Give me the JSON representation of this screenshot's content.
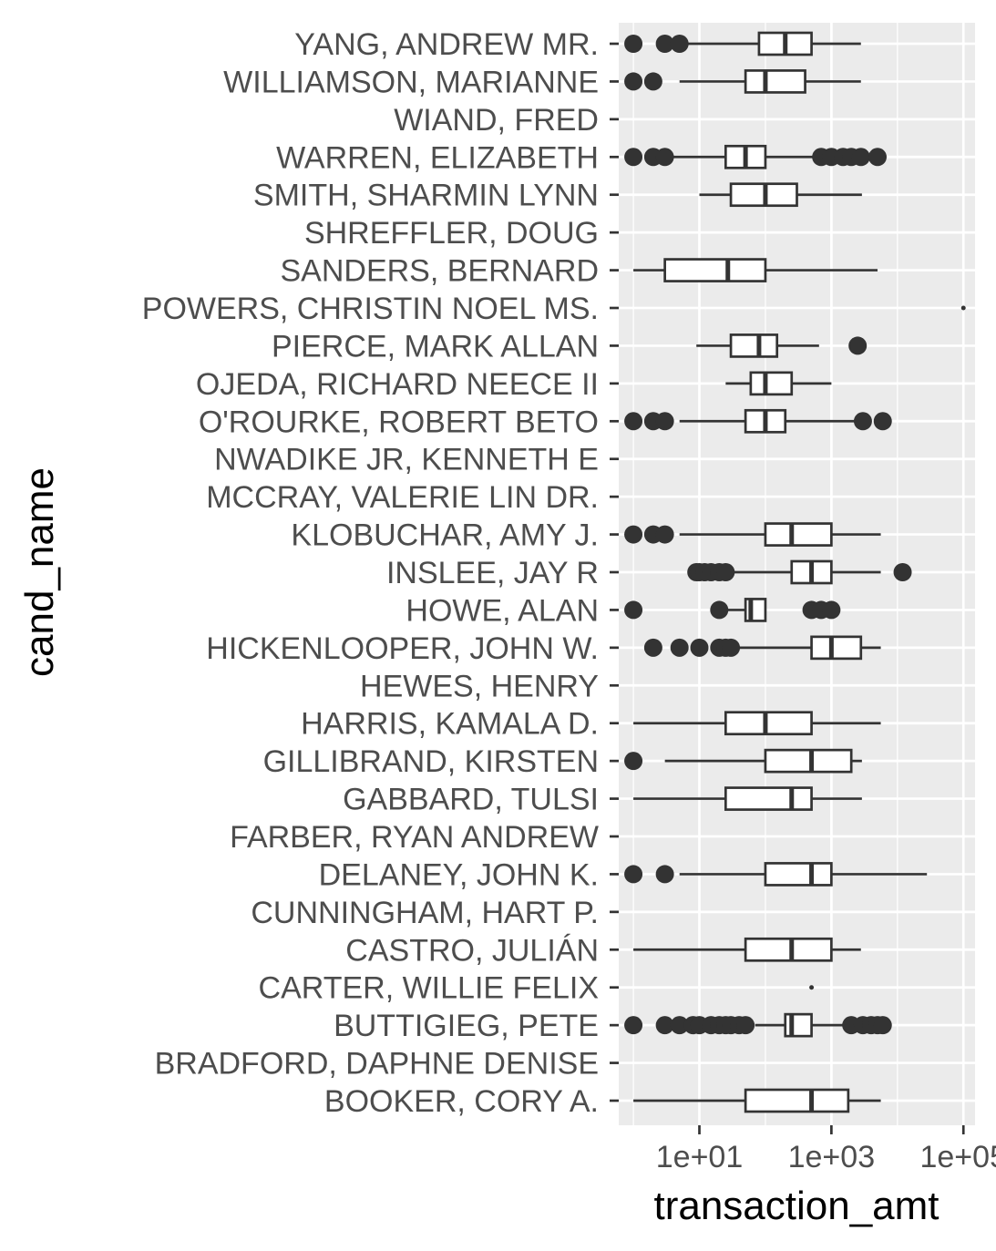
{
  "chart_data": {
    "type": "boxplot",
    "orientation": "horizontal",
    "xlabel": "transaction_amt",
    "ylabel": "cand_name",
    "x_scale": "log10",
    "xlim": [
      0.6,
      150000
    ],
    "x_ticks": [
      10,
      1000,
      100000
    ],
    "x_tick_labels": [
      "1e+01",
      "1e+03",
      "1e+05"
    ],
    "x_minor_ticks": [
      1,
      100,
      10000
    ],
    "grid": true,
    "legend": "none",
    "colors": {
      "panel": "#ebebeb",
      "grid": "#ffffff",
      "box_line": "#333333",
      "box_fill": "#ffffff",
      "outlier": "#333333"
    },
    "categories": [
      "YANG, ANDREW MR.",
      "WILLIAMSON, MARIANNE",
      "WIAND, FRED",
      "WARREN, ELIZABETH",
      "SMITH, SHARMIN LYNN",
      "SHREFFLER, DOUG",
      "SANDERS, BERNARD",
      "POWERS, CHRISTIN NOEL MS.",
      "PIERCE, MARK ALLAN",
      "OJEDA, RICHARD NEECE II",
      "O'ROURKE, ROBERT BETO",
      "NWADIKE JR, KENNETH E",
      "MCCRAY, VALERIE LIN DR.",
      "KLOBUCHAR, AMY J.",
      "INSLEE, JAY R",
      "HOWE, ALAN",
      "HICKENLOOPER, JOHN W.",
      "HEWES, HENRY",
      "HARRIS, KAMALA D.",
      "GILLIBRAND, KIRSTEN",
      "GABBARD, TULSI",
      "FARBER, RYAN ANDREW",
      "DELANEY, JOHN K.",
      "CUNNINGHAM, HART P.",
      "CASTRO, JULIÁN",
      "CARTER, WILLIE FELIX",
      "BUTTIGIEG, PETE",
      "BRADFORD, DAPHNE DENISE",
      "BOOKER, CORY A."
    ],
    "boxes": [
      {
        "name": "YANG, ANDREW MR.",
        "lower_whisker": 6,
        "q1": 80,
        "median": 200,
        "q3": 500,
        "upper_whisker": 2800,
        "outliers": [
          1,
          3,
          5
        ]
      },
      {
        "name": "WILLIAMSON, MARIANNE",
        "lower_whisker": 5,
        "q1": 50,
        "median": 100,
        "q3": 400,
        "upper_whisker": 2800,
        "outliers": [
          1,
          2
        ]
      },
      {
        "name": "WIAND, FRED",
        "lower_whisker": null,
        "q1": null,
        "median": null,
        "q3": null,
        "upper_whisker": null,
        "outliers": []
      },
      {
        "name": "WARREN, ELIZABETH",
        "lower_whisker": 3,
        "q1": 25,
        "median": 50,
        "q3": 100,
        "upper_whisker": 600,
        "outliers": [
          1,
          2,
          3,
          700,
          1000,
          1500,
          2000,
          2800,
          5000
        ]
      },
      {
        "name": "SMITH, SHARMIN LYNN",
        "lower_whisker": 10,
        "q1": 30,
        "median": 100,
        "q3": 300,
        "upper_whisker": 2900,
        "outliers": []
      },
      {
        "name": "SHREFFLER, DOUG",
        "lower_whisker": null,
        "q1": null,
        "median": null,
        "q3": null,
        "upper_whisker": null,
        "outliers": []
      },
      {
        "name": "SANDERS, BERNARD",
        "lower_whisker": 1,
        "q1": 3,
        "median": 27,
        "q3": 100,
        "upper_whisker": 5000,
        "outliers": []
      },
      {
        "name": "POWERS, CHRISTIN NOEL MS.",
        "lower_whisker": 100000,
        "q1": 100000,
        "median": 100000,
        "q3": 100000,
        "upper_whisker": 100000,
        "outliers": []
      },
      {
        "name": "PIERCE, MARK ALLAN",
        "lower_whisker": 9,
        "q1": 30,
        "median": 80,
        "q3": 150,
        "upper_whisker": 650,
        "outliers": [
          2500
        ]
      },
      {
        "name": "OJEDA, RICHARD NEECE II",
        "lower_whisker": 25,
        "q1": 60,
        "median": 100,
        "q3": 250,
        "upper_whisker": 1000,
        "outliers": []
      },
      {
        "name": "O'ROURKE, ROBERT BETO",
        "lower_whisker": 5,
        "q1": 50,
        "median": 100,
        "q3": 200,
        "upper_whisker": 2700,
        "outliers": [
          1,
          2,
          3,
          3000,
          6000
        ]
      },
      {
        "name": "NWADIKE JR, KENNETH E",
        "lower_whisker": null,
        "q1": null,
        "median": null,
        "q3": null,
        "upper_whisker": null,
        "outliers": []
      },
      {
        "name": "MCCRAY, VALERIE LIN DR.",
        "lower_whisker": null,
        "q1": null,
        "median": null,
        "q3": null,
        "upper_whisker": null,
        "outliers": []
      },
      {
        "name": "KLOBUCHAR, AMY J.",
        "lower_whisker": 5,
        "q1": 100,
        "median": 250,
        "q3": 1000,
        "upper_whisker": 5600,
        "outliers": [
          1,
          2,
          3
        ]
      },
      {
        "name": "INSLEE, JAY R",
        "lower_whisker": 30,
        "q1": 250,
        "median": 500,
        "q3": 1000,
        "upper_whisker": 5600,
        "outliers": [
          9,
          10,
          12,
          15,
          20,
          25,
          12000
        ]
      },
      {
        "name": "HOWE, ALAN",
        "lower_whisker": 25,
        "q1": 50,
        "median": 60,
        "q3": 100,
        "upper_whisker": 100,
        "outliers": [
          1,
          20,
          500,
          700,
          1000
        ]
      },
      {
        "name": "HICKENLOOPER, JOHN W.",
        "lower_whisker": 30,
        "q1": 500,
        "median": 1000,
        "q3": 2800,
        "upper_whisker": 5600,
        "outliers": [
          2,
          5,
          10,
          20,
          25,
          30
        ]
      },
      {
        "name": "HEWES, HENRY",
        "lower_whisker": null,
        "q1": null,
        "median": null,
        "q3": null,
        "upper_whisker": null,
        "outliers": []
      },
      {
        "name": "HARRIS, KAMALA D.",
        "lower_whisker": 1,
        "q1": 25,
        "median": 100,
        "q3": 500,
        "upper_whisker": 5600,
        "outliers": []
      },
      {
        "name": "GILLIBRAND, KIRSTEN",
        "lower_whisker": 3,
        "q1": 100,
        "median": 500,
        "q3": 2000,
        "upper_whisker": 2900,
        "outliers": [
          1
        ]
      },
      {
        "name": "GABBARD, TULSI",
        "lower_whisker": 1,
        "q1": 25,
        "median": 250,
        "q3": 500,
        "upper_whisker": 2900,
        "outliers": []
      },
      {
        "name": "FARBER, RYAN ANDREW",
        "lower_whisker": null,
        "q1": null,
        "median": null,
        "q3": null,
        "upper_whisker": null,
        "outliers": []
      },
      {
        "name": "DELANEY, JOHN K.",
        "lower_whisker": 5,
        "q1": 100,
        "median": 500,
        "q3": 1000,
        "upper_whisker": 28000,
        "outliers": [
          1,
          3
        ]
      },
      {
        "name": "CUNNINGHAM, HART P.",
        "lower_whisker": null,
        "q1": null,
        "median": null,
        "q3": null,
        "upper_whisker": null,
        "outliers": []
      },
      {
        "name": "CASTRO, JULIÁN",
        "lower_whisker": 1,
        "q1": 50,
        "median": 250,
        "q3": 1000,
        "upper_whisker": 2800,
        "outliers": []
      },
      {
        "name": "CARTER, WILLIE FELIX",
        "lower_whisker": 500,
        "q1": 500,
        "median": 500,
        "q3": 500,
        "upper_whisker": 500,
        "outliers": []
      },
      {
        "name": "BUTTIGIEG, PETE",
        "lower_whisker": 70,
        "q1": 200,
        "median": 250,
        "q3": 500,
        "upper_whisker": 2000,
        "outliers": [
          1,
          3,
          5,
          8,
          10,
          15,
          20,
          25,
          30,
          40,
          50,
          2000,
          3000,
          4000,
          5000,
          6000
        ]
      },
      {
        "name": "BRADFORD, DAPHNE DENISE",
        "lower_whisker": null,
        "q1": null,
        "median": null,
        "q3": null,
        "upper_whisker": null,
        "outliers": []
      },
      {
        "name": "BOOKER, CORY A.",
        "lower_whisker": 1,
        "q1": 50,
        "median": 500,
        "q3": 1800,
        "upper_whisker": 5600,
        "outliers": []
      }
    ]
  }
}
